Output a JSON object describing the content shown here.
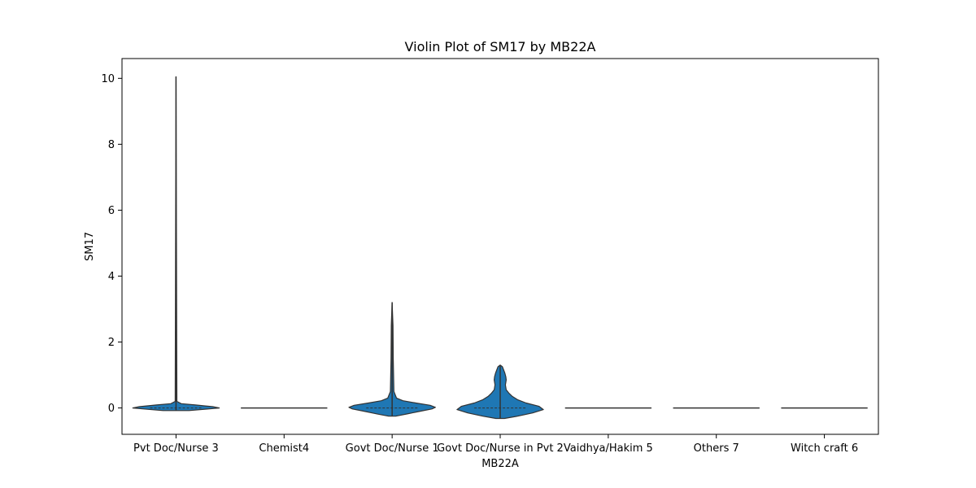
{
  "chart_data": {
    "type": "violin",
    "title": "Violin Plot of SM17 by MB22A",
    "xlabel": "MB22A",
    "ylabel": "SM17",
    "ylim": [
      -0.8,
      10.6
    ],
    "yticks": [
      0,
      2,
      4,
      6,
      8,
      10
    ],
    "categories": [
      "Pvt Doc/Nurse 3",
      "Chemist4",
      "Govt Doc/Nurse 1",
      "Govt Doc/Nurse in Pvt 2",
      "Vaidhya/Hakim 5",
      "Others 7",
      "Witch craft 6"
    ],
    "violin_color": "#1f77b4",
    "edge_color": "#333333",
    "grid": false,
    "violins": [
      {
        "category": "Pvt Doc/Nurse 3",
        "max": 10.05,
        "min": -0.08,
        "median": 0.0,
        "density": [
          [
            -0.08,
            0.3
          ],
          [
            -0.03,
            0.75
          ],
          [
            0.0,
            1.0
          ],
          [
            0.04,
            0.85
          ],
          [
            0.09,
            0.45
          ],
          [
            0.13,
            0.12
          ],
          [
            0.2,
            0.02
          ],
          [
            10.05,
            0.0
          ]
        ]
      },
      {
        "category": "Chemist4",
        "max": 0.0,
        "min": 0.0,
        "median": 0.0,
        "density": []
      },
      {
        "category": "Govt Doc/Nurse 1",
        "max": 3.2,
        "min": -0.25,
        "median": 0.0,
        "density": [
          [
            -0.25,
            0.08
          ],
          [
            -0.18,
            0.35
          ],
          [
            -0.1,
            0.65
          ],
          [
            -0.03,
            0.92
          ],
          [
            0.02,
            1.0
          ],
          [
            0.08,
            0.88
          ],
          [
            0.15,
            0.55
          ],
          [
            0.22,
            0.25
          ],
          [
            0.3,
            0.1
          ],
          [
            0.5,
            0.04
          ],
          [
            1.5,
            0.025
          ],
          [
            2.5,
            0.02
          ],
          [
            3.2,
            0.0
          ]
        ]
      },
      {
        "category": "Govt Doc/Nurse in Pvt 2",
        "max": 1.3,
        "min": -0.32,
        "median": 0.0,
        "density": [
          [
            -0.32,
            0.1
          ],
          [
            -0.25,
            0.4
          ],
          [
            -0.15,
            0.75
          ],
          [
            -0.05,
            1.0
          ],
          [
            0.05,
            0.9
          ],
          [
            0.15,
            0.6
          ],
          [
            0.25,
            0.4
          ],
          [
            0.35,
            0.28
          ],
          [
            0.45,
            0.2
          ],
          [
            0.55,
            0.14
          ],
          [
            0.7,
            0.12
          ],
          [
            0.85,
            0.14
          ],
          [
            0.95,
            0.13
          ],
          [
            1.05,
            0.11
          ],
          [
            1.15,
            0.08
          ],
          [
            1.25,
            0.05
          ],
          [
            1.3,
            0.0
          ]
        ]
      },
      {
        "category": "Vaidhya/Hakim 5",
        "max": 0.0,
        "min": 0.0,
        "median": 0.0,
        "density": []
      },
      {
        "category": "Others 7",
        "max": 0.0,
        "min": 0.0,
        "median": 0.0,
        "density": []
      },
      {
        "category": "Witch craft 6",
        "max": 0.0,
        "min": 0.0,
        "median": 0.0,
        "density": []
      }
    ]
  }
}
